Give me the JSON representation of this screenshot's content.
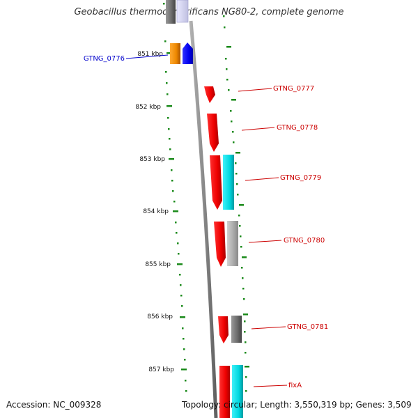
{
  "header": {
    "title": "Geobacillus thermodenitrificans NG80-2, complete genome"
  },
  "footer": {
    "accession": "Accession: NC_009328",
    "stats": "Topology: circular; Length: 3,550,319 bp; Genes: 3,509"
  },
  "map": {
    "tick_labels": [
      "851 kbp",
      "852 kbp",
      "853 kbp",
      "854 kbp",
      "855 kbp",
      "856 kbp",
      "857 kbp"
    ],
    "genes": [
      {
        "id": "GTNG_0776",
        "color": "#0000cc",
        "side": "left"
      },
      {
        "id": "GTNG_0777",
        "color": "#cc0000",
        "side": "right"
      },
      {
        "id": "GTNG_0778",
        "color": "#cc0000",
        "side": "right"
      },
      {
        "id": "GTNG_0779",
        "color": "#cc0000",
        "side": "right"
      },
      {
        "id": "GTNG_0780",
        "color": "#cc0000",
        "side": "right"
      },
      {
        "id": "GTNG_0781",
        "color": "#cc0000",
        "side": "right"
      },
      {
        "id": "fixA",
        "color": "#cc0000",
        "side": "right"
      }
    ],
    "colors": {
      "backbone": "#8a8a8a",
      "ticks": "#1a8a1a",
      "forward_gene": "#ee0000",
      "cyan_track": "#00d8e0",
      "grey_track": "#a8a8a8",
      "dark_track": "#6a6a6a",
      "orange_track": "#ee8800",
      "blue_track": "#0000ee"
    }
  }
}
